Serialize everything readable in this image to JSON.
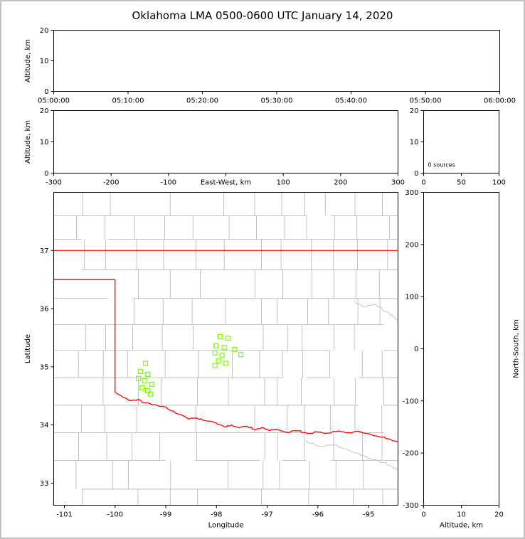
{
  "title": "Oklahoma LMA 0500-0600 UTC January 14, 2020",
  "colors": {
    "state_border": "#ff0000",
    "county_lines": "#b3b3b3",
    "source_marker": "#7cfc00",
    "panel_frame": "#000000",
    "figure_frame": "#c0c0c0"
  },
  "chart_data": [
    {
      "id": "time_height",
      "name": "Altitude vs Time panel",
      "type": "scatter",
      "xlabel": "",
      "ylabel": "Altitude, km",
      "xtick_labels": [
        "05:00:00",
        "05:10:00",
        "05:20:00",
        "05:30:00",
        "05:40:00",
        "05:50:00",
        "06:00:00"
      ],
      "yticks": [
        0,
        10,
        20
      ],
      "ylim": [
        0,
        20
      ],
      "points": []
    },
    {
      "id": "ew_height",
      "name": "Altitude vs East-West panel",
      "type": "scatter",
      "xlabel": "East-West, km",
      "ylabel": "Altitude, km",
      "xticks": [
        -300,
        -200,
        -100,
        0,
        100,
        200,
        300
      ],
      "xtick_hide": [
        0
      ],
      "xlim": [
        -300,
        300
      ],
      "yticks": [
        0,
        10,
        20
      ],
      "ylim": [
        0,
        20
      ],
      "points": []
    },
    {
      "id": "source_histogram",
      "name": "Source count panel",
      "type": "line",
      "annotation": "0 sources",
      "xticks": [
        0,
        50,
        100
      ],
      "xlim": [
        0,
        100
      ],
      "yticks": [
        0,
        10,
        20
      ],
      "ylim": [
        0,
        20
      ],
      "points": []
    },
    {
      "id": "plan_view",
      "name": "Plan view map of Oklahoma",
      "type": "scatter",
      "xlabel": "Longitude",
      "ylabel": "Latitude",
      "xticks": [
        -101,
        -100,
        -99,
        -98,
        -97,
        -96,
        -95
      ],
      "xlim": [
        -101.21,
        -94.42
      ],
      "yticks": [
        33,
        34,
        35,
        36,
        37
      ],
      "ylim": [
        32.62,
        38.0
      ],
      "marker": "open-square",
      "points": [
        [
          -99.4,
          35.06
        ],
        [
          -99.5,
          34.92
        ],
        [
          -99.36,
          34.87
        ],
        [
          -99.54,
          34.8
        ],
        [
          -99.42,
          34.76
        ],
        [
          -99.28,
          34.7
        ],
        [
          -99.47,
          34.64
        ],
        [
          -99.36,
          34.59
        ],
        [
          -99.3,
          34.53
        ],
        [
          -97.93,
          35.52
        ],
        [
          -97.77,
          35.49
        ],
        [
          -98.01,
          35.36
        ],
        [
          -97.85,
          35.33
        ],
        [
          -97.64,
          35.3
        ],
        [
          -98.03,
          35.24
        ],
        [
          -97.89,
          35.2
        ],
        [
          -97.52,
          35.21
        ],
        [
          -97.96,
          35.1
        ],
        [
          -97.82,
          35.06
        ],
        [
          -98.03,
          35.02
        ]
      ],
      "state_border": {
        "north_border_lat": 37.0,
        "panhandle_south_lat": 36.5,
        "panhandle_east_lon": -100.0,
        "red_river": [
          [
            -100.0,
            34.56
          ],
          [
            -99.85,
            34.48
          ],
          [
            -99.7,
            34.42
          ],
          [
            -99.55,
            34.44
          ],
          [
            -99.4,
            34.38
          ],
          [
            -99.2,
            34.35
          ],
          [
            -99.0,
            34.31
          ],
          [
            -98.8,
            34.2
          ],
          [
            -98.55,
            34.1
          ],
          [
            -98.4,
            34.12
          ],
          [
            -98.2,
            34.07
          ],
          [
            -98.0,
            34.03
          ],
          [
            -97.85,
            33.97
          ],
          [
            -97.7,
            34.0
          ],
          [
            -97.55,
            33.95
          ],
          [
            -97.4,
            33.98
          ],
          [
            -97.25,
            33.92
          ],
          [
            -97.1,
            33.96
          ],
          [
            -96.95,
            33.9
          ],
          [
            -96.8,
            33.93
          ],
          [
            -96.6,
            33.87
          ],
          [
            -96.4,
            33.9
          ],
          [
            -96.2,
            33.85
          ],
          [
            -96.0,
            33.88
          ],
          [
            -95.8,
            33.86
          ],
          [
            -95.6,
            33.9
          ],
          [
            -95.4,
            33.87
          ],
          [
            -95.2,
            33.89
          ],
          [
            -95.0,
            33.85
          ],
          [
            -94.8,
            33.8
          ],
          [
            -94.6,
            33.76
          ],
          [
            -94.42,
            33.71
          ]
        ]
      }
    },
    {
      "id": "ns_height",
      "name": "Altitude vs North-South panel",
      "type": "scatter",
      "xlabel": "Altitude, km",
      "ylabel_right": "North-South, km",
      "xticks": [
        0,
        10,
        20
      ],
      "xlim": [
        0,
        20
      ],
      "yticks": [
        -300,
        -200,
        -100,
        0,
        100,
        200,
        300
      ],
      "ylim": [
        -300,
        300
      ],
      "points": []
    }
  ]
}
